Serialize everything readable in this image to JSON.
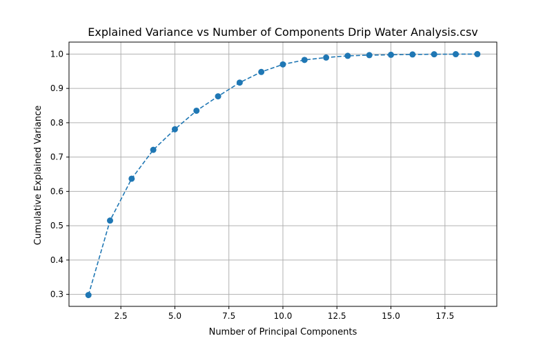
{
  "chart_data": {
    "type": "line",
    "title": "Explained Variance vs Number of Components Drip Water Analysis.csv",
    "xlabel": "Number of Principal Components",
    "ylabel": "Cumulative Explained Variance",
    "xlim": [
      0.1,
      19.9
    ],
    "ylim": [
      0.265,
      1.035
    ],
    "xticks": [
      2.5,
      5.0,
      7.5,
      10.0,
      12.5,
      15.0,
      17.5
    ],
    "xtick_labels": [
      "2.5",
      "5.0",
      "7.5",
      "10.0",
      "12.5",
      "15.0",
      "17.5"
    ],
    "yticks": [
      0.3,
      0.4,
      0.5,
      0.6,
      0.7,
      0.8,
      0.9,
      1.0
    ],
    "ytick_labels": [
      "0.3",
      "0.4",
      "0.5",
      "0.6",
      "0.7",
      "0.8",
      "0.9",
      "1.0"
    ],
    "grid": true,
    "line_style": "dashed",
    "marker": "circle",
    "color": "#1f77b4",
    "series": [
      {
        "x": [
          1,
          2,
          3,
          4,
          5,
          6,
          7,
          8,
          9,
          10,
          11,
          12,
          13,
          14,
          15,
          16,
          17,
          18,
          19
        ],
        "values": [
          0.298,
          0.515,
          0.637,
          0.721,
          0.781,
          0.835,
          0.877,
          0.917,
          0.948,
          0.97,
          0.983,
          0.99,
          0.995,
          0.997,
          0.998,
          0.999,
          0.9995,
          0.9998,
          1.0
        ]
      }
    ]
  }
}
